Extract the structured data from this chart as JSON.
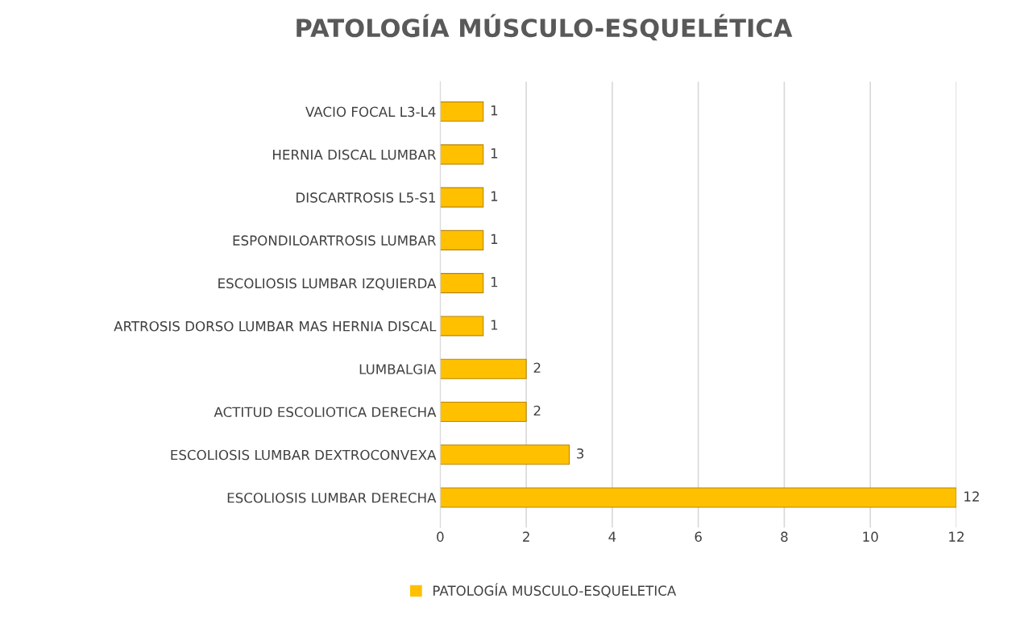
{
  "chart_data": {
    "type": "bar",
    "orientation": "horizontal",
    "title": "PATOLOGÍA MÚSCULO-ESQUELÉTICA",
    "categories": [
      "VACIO FOCAL L3-L4",
      "HERNIA DISCAL LUMBAR",
      "DISCARTROSIS L5-S1",
      "ESPONDILOARTROSIS LUMBAR",
      "ESCOLIOSIS LUMBAR IZQUIERDA",
      "ARTROSIS DORSO LUMBAR MAS HERNIA DISCAL",
      "LUMBALGIA",
      "ACTITUD ESCOLIOTICA DERECHA",
      "ESCOLIOSIS LUMBAR DEXTROCONVEXA",
      "ESCOLIOSIS LUMBAR DERECHA"
    ],
    "series": [
      {
        "name": "PATOLOGÍA MUSCULO-ESQUELETICA",
        "color": "#ffc000",
        "values": [
          1,
          1,
          1,
          1,
          1,
          1,
          2,
          2,
          3,
          12
        ]
      }
    ],
    "xlim": [
      0,
      12
    ],
    "xticks": [
      0,
      2,
      4,
      6,
      8,
      10,
      12
    ],
    "grid": "x",
    "legend": "bottom",
    "data_labels": true
  }
}
